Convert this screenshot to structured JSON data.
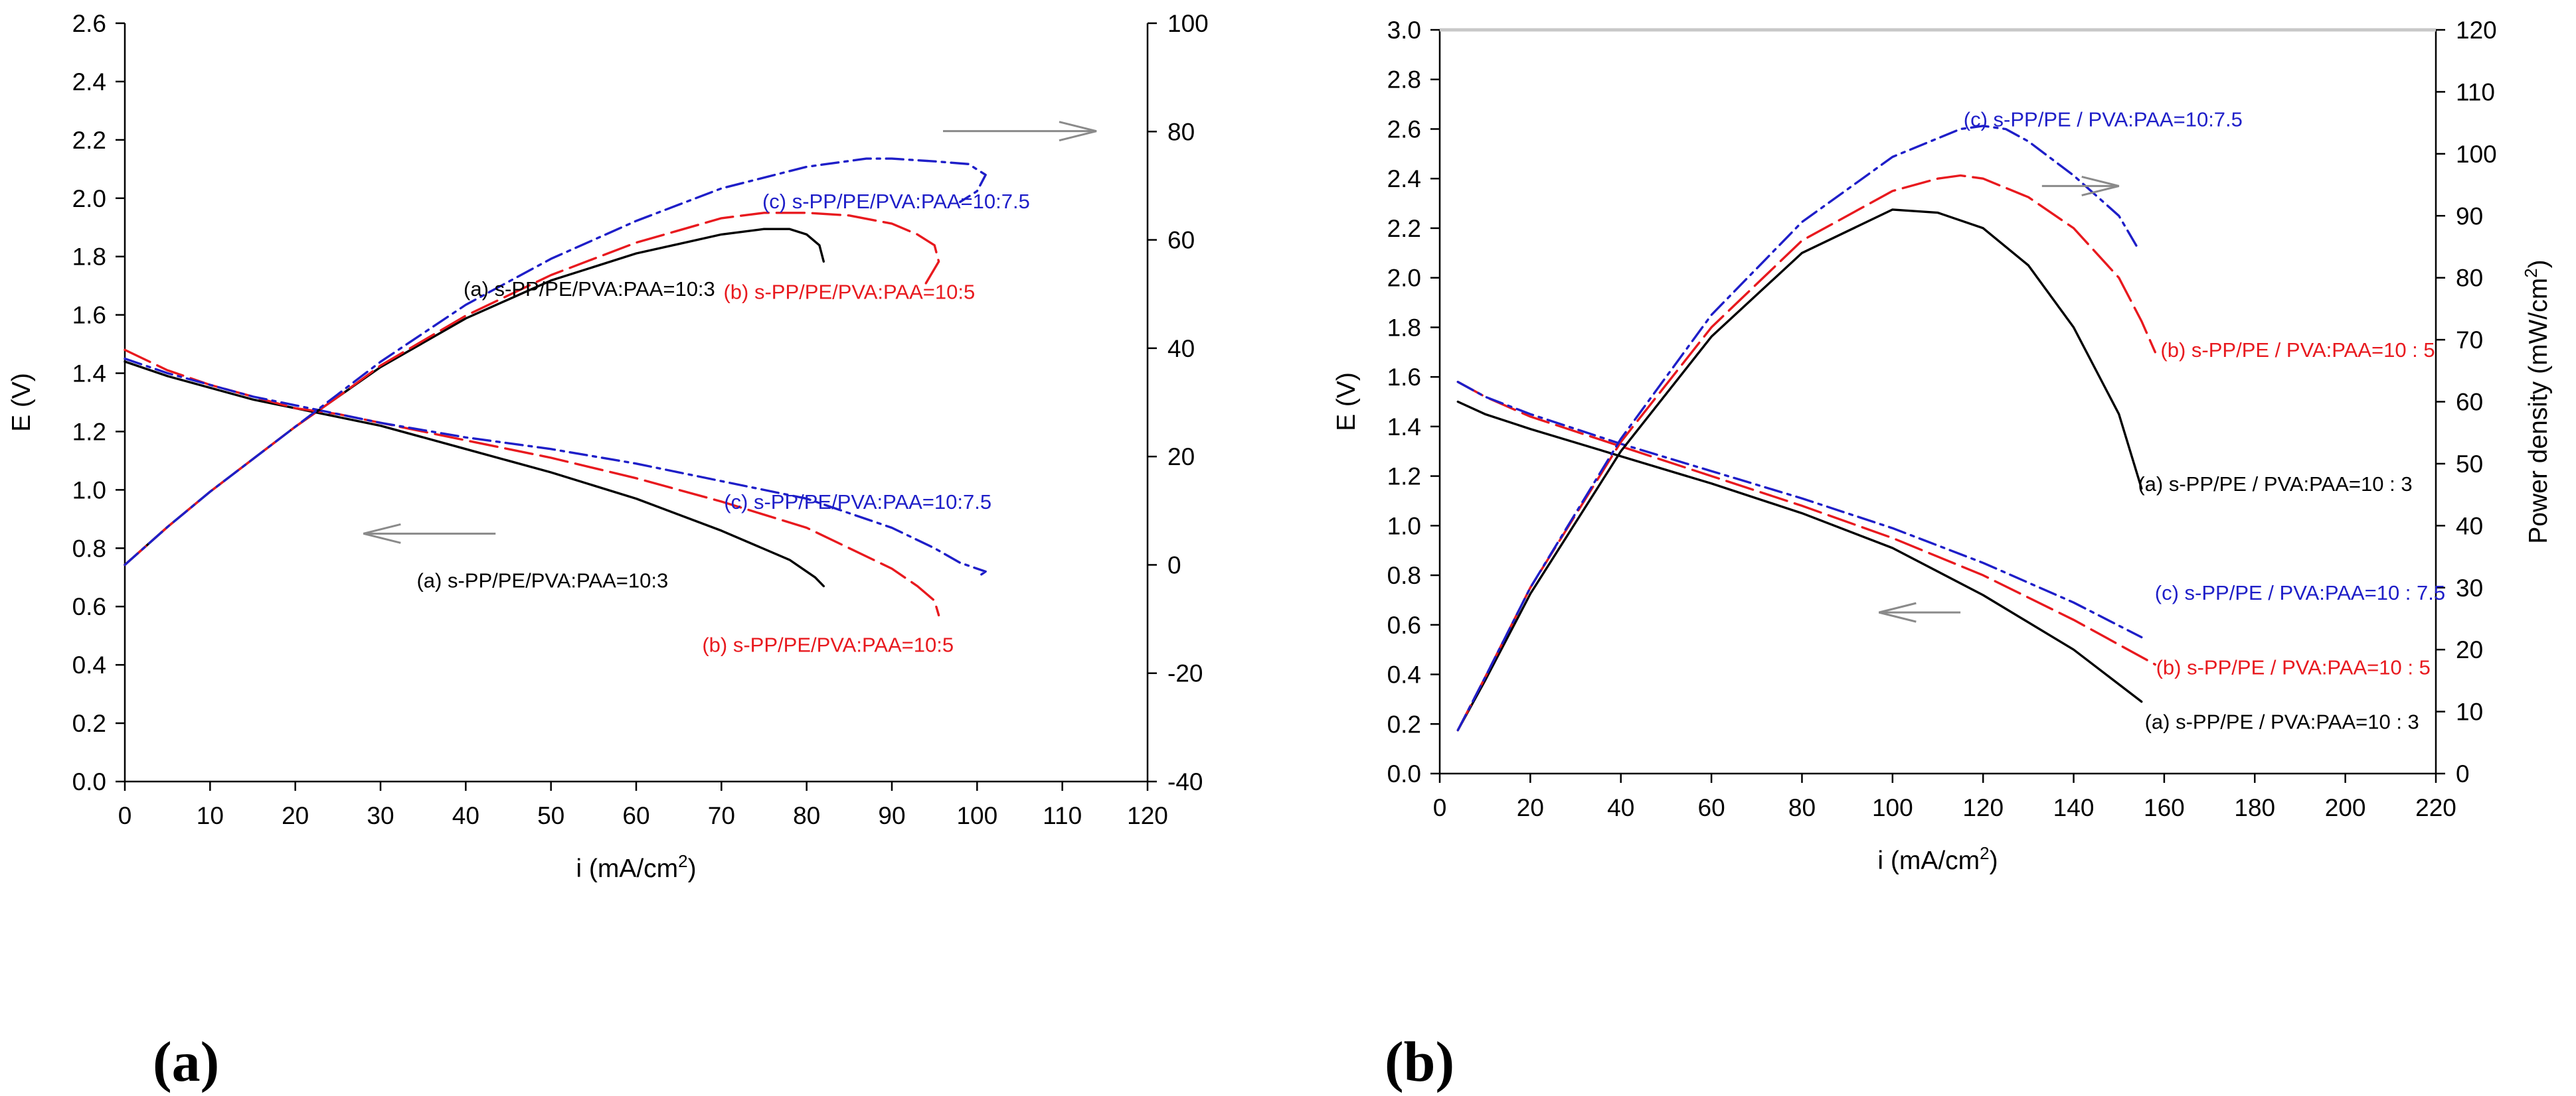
{
  "panels": [
    {
      "label": "(a)",
      "chart_data": {
        "type": "line",
        "xlabel": "i (mA/cm",
        "xlabel_sup": "2",
        "xlabel_end": ")",
        "ylabel": "E (V)",
        "y2label": "",
        "xlim": [
          0,
          120
        ],
        "ylim": [
          0,
          2.6
        ],
        "y2lim": [
          -40,
          100
        ],
        "xticks": [
          0,
          10,
          20,
          30,
          40,
          50,
          60,
          70,
          80,
          90,
          100,
          110,
          120
        ],
        "yticks": [
          0.0,
          0.2,
          0.4,
          0.6,
          0.8,
          1.0,
          1.2,
          1.4,
          1.6,
          1.8,
          2.0,
          2.2,
          2.4,
          2.6
        ],
        "y2ticks": [
          -40,
          -20,
          0,
          20,
          40,
          60,
          80,
          100
        ],
        "series": [
          {
            "name": "(a) s-PP/PE/PVA:PAA=10:3",
            "kind": "polarization",
            "color": "#000000",
            "dash": "solid",
            "x": [
              0,
              5,
              10,
              15,
              20,
              25,
              30,
              40,
              50,
              60,
              70,
              78,
              81,
              82
            ],
            "y": [
              1.44,
              1.39,
              1.35,
              1.31,
              1.28,
              1.25,
              1.22,
              1.14,
              1.06,
              0.97,
              0.86,
              0.76,
              0.7,
              0.67
            ]
          },
          {
            "name": "(b) s-PP/PE/PVA:PAA=10:5",
            "kind": "polarization",
            "color": "#e8191e",
            "dash": "long",
            "x": [
              0,
              5,
              10,
              15,
              20,
              25,
              30,
              40,
              50,
              60,
              70,
              80,
              90,
              93,
              95,
              95.5
            ],
            "y": [
              1.48,
              1.41,
              1.36,
              1.32,
              1.28,
              1.26,
              1.23,
              1.17,
              1.11,
              1.04,
              0.96,
              0.87,
              0.73,
              0.67,
              0.62,
              0.57
            ]
          },
          {
            "name": "(c) s-PP/PE/PVA:PAA=10:7.5",
            "kind": "polarization",
            "color": "#1e1ec8",
            "dash": "dashdot",
            "x": [
              0,
              5,
              10,
              15,
              20,
              25,
              30,
              40,
              50,
              60,
              70,
              80,
              90,
              95,
              98,
              100,
              101,
              100.5
            ],
            "y": [
              1.45,
              1.4,
              1.36,
              1.32,
              1.29,
              1.26,
              1.23,
              1.18,
              1.14,
              1.09,
              1.03,
              0.97,
              0.87,
              0.8,
              0.75,
              0.73,
              0.72,
              0.71
            ]
          },
          {
            "name": "(a) s-PP/PE/PVA:PAA=10:3",
            "kind": "power",
            "color": "#000000",
            "dash": "solid",
            "x": [
              0,
              5,
              10,
              15,
              20,
              25,
              30,
              40,
              50,
              60,
              70,
              75,
              78,
              80,
              81.5,
              82
            ],
            "y": [
              0,
              7,
              13.5,
              19.5,
              25.5,
              31,
              36.5,
              45.5,
              52.5,
              57.5,
              61,
              62,
              62,
              61,
              59,
              56
            ]
          },
          {
            "name": "(b) s-PP/PE/PVA:PAA=10:5",
            "kind": "power",
            "color": "#e8191e",
            "dash": "long",
            "x": [
              0,
              5,
              10,
              15,
              20,
              25,
              30,
              40,
              50,
              60,
              70,
              75,
              80,
              85,
              90,
              93,
              95,
              95.5,
              94
            ],
            "y": [
              0,
              7,
              13.5,
              19.5,
              25.5,
              31,
              36.8,
              46,
              53.5,
              59.5,
              64,
              65,
              65,
              64.5,
              63,
              61,
              59,
              56,
              52
            ]
          },
          {
            "name": "(c) s-PP/PE/PVA:PAA=10:7.5",
            "kind": "power",
            "color": "#1e1ec8",
            "dash": "dashdot",
            "x": [
              0,
              5,
              10,
              15,
              20,
              25,
              30,
              40,
              50,
              60,
              70,
              80,
              87,
              90,
              95,
              99,
              101,
              100,
              98
            ],
            "y": [
              0,
              7,
              13.5,
              19.5,
              25.5,
              31.5,
              37.5,
              48,
              56.5,
              63.5,
              69.5,
              73.5,
              75,
              75,
              74.5,
              74,
              72,
              69,
              67
            ]
          }
        ],
        "annotations": [
          {
            "text": "(c) s-PP/PE/PVA:PAA=10:7.5",
            "color": "#1e1ec8",
            "x": 90.5,
            "y": 1.99
          },
          {
            "text": "(a) s-PP/PE/PVA:PAA=10:3",
            "color": "#000000",
            "x": 54.5,
            "y": 1.69
          },
          {
            "text": "(b) s-PP/PE/PVA:PAA=10:5",
            "color": "#e8191e",
            "x": 85,
            "y": 1.68
          },
          {
            "text": "(c) s-PP/PE/PVA:PAA=10:7.5",
            "color": "#1e1ec8",
            "x": 86,
            "y": 0.96
          },
          {
            "text": "(a) s-PP/PE/PVA:PAA=10:3",
            "color": "#000000",
            "x": 49,
            "y": 0.69
          },
          {
            "text": "(b) s-PP/PE/PVA:PAA=10:5",
            "color": "#e8191e",
            "x": 82.5,
            "y": 0.47
          }
        ],
        "arrows": [
          {
            "direction": "right",
            "x1": 96,
            "x2": 114,
            "y": 2.23
          },
          {
            "direction": "left",
            "x1": 43.5,
            "x2": 28,
            "y": 0.85
          }
        ]
      }
    },
    {
      "label": "(b)",
      "chart_data": {
        "type": "line",
        "xlabel": "i (mA/cm",
        "xlabel_sup": "2",
        "xlabel_end": ")",
        "ylabel": "E (V)",
        "y2label": "Power density (mW/cm",
        "y2label_sup": "2",
        "y2label_end": ")",
        "xlim": [
          0,
          220
        ],
        "ylim": [
          0,
          3.0
        ],
        "y2lim": [
          0,
          120
        ],
        "xticks": [
          0,
          20,
          40,
          60,
          80,
          100,
          120,
          140,
          160,
          180,
          200,
          220
        ],
        "yticks": [
          0.0,
          0.2,
          0.4,
          0.6,
          0.8,
          1.0,
          1.2,
          1.4,
          1.6,
          1.8,
          2.0,
          2.2,
          2.4,
          2.6,
          2.8,
          3.0
        ],
        "y2ticks": [
          0,
          10,
          20,
          30,
          40,
          50,
          60,
          70,
          80,
          90,
          100,
          110,
          120
        ],
        "series": [
          {
            "name": "(a) s-PP/PE / PVA:PAA=10 : 3",
            "kind": "polarization",
            "color": "#000000",
            "dash": "solid",
            "x": [
              4,
              10,
              20,
              40,
              60,
              80,
              100,
              120,
              140,
              155
            ],
            "y": [
              1.5,
              1.45,
              1.39,
              1.28,
              1.17,
              1.05,
              0.91,
              0.72,
              0.5,
              0.29
            ]
          },
          {
            "name": "(b) s-PP/PE / PVA:PAA=10 : 5",
            "kind": "polarization",
            "color": "#e8191e",
            "dash": "long",
            "x": [
              4,
              10,
              20,
              40,
              60,
              80,
              100,
              120,
              140,
              158
            ],
            "y": [
              1.58,
              1.52,
              1.44,
              1.32,
              1.2,
              1.08,
              0.95,
              0.8,
              0.62,
              0.44
            ]
          },
          {
            "name": "(c) s-PP/PE / PVA:PAA=10 : 7.5",
            "kind": "polarization",
            "color": "#1e1ec8",
            "dash": "dashdot",
            "x": [
              4,
              10,
              20,
              40,
              60,
              80,
              100,
              120,
              140,
              155
            ],
            "y": [
              1.58,
              1.52,
              1.45,
              1.33,
              1.22,
              1.11,
              0.99,
              0.85,
              0.69,
              0.55
            ]
          },
          {
            "name": "(a) s-PP/PE / PVA:PAA=10 : 3",
            "kind": "power",
            "color": "#000000",
            "dash": "solid",
            "x": [
              4,
              10,
              20,
              40,
              60,
              80,
              100,
              110,
              120,
              130,
              140,
              150,
              155
            ],
            "y": [
              7,
              15,
              29,
              52,
              70.5,
              84,
              91,
              90.5,
              88,
              82,
              72,
              58,
              46
            ]
          },
          {
            "name": "(b) s-PP/PE / PVA:PAA=10 : 5",
            "kind": "power",
            "color": "#e8191e",
            "dash": "long",
            "x": [
              4,
              10,
              20,
              40,
              60,
              80,
              100,
              110,
              115,
              120,
              130,
              140,
              150,
              155,
              158
            ],
            "y": [
              7,
              15.5,
              30,
              53.5,
              72,
              86,
              94,
              96,
              96.5,
              96,
              93,
              88,
              80,
              73,
              68
            ]
          },
          {
            "name": "(c) s-PP/PE / PVA:PAA=10 : 7.5",
            "kind": "power",
            "color": "#1e1ec8",
            "dash": "dashdot",
            "x": [
              4,
              10,
              20,
              40,
              60,
              80,
              100,
              110,
              115,
              120,
              125,
              130,
              140,
              150,
              154
            ],
            "y": [
              7,
              15.5,
              30,
              54,
              74,
              89,
              99.5,
              102.5,
              104,
              104.5,
              104,
              102,
              96.5,
              90,
              85
            ]
          }
        ],
        "annotations": [
          {
            "text": "(c) s-PP/PE / PVA:PAA=10:7.5",
            "color": "#1e1ec8",
            "x": 146.5,
            "y": 2.64
          },
          {
            "text": "(b) s-PP/PE / PVA:PAA=10 : 5",
            "color": "#e8191e",
            "x": 189.5,
            "y": 1.71
          },
          {
            "text": "(a) s-PP/PE / PVA:PAA=10 : 3",
            "color": "#000000",
            "x": 184.5,
            "y": 1.17
          },
          {
            "text": "(c) s-PP/PE / PVA:PAA=10 : 7.5",
            "color": "#1e1ec8",
            "x": 190,
            "y": 0.73
          },
          {
            "text": "(b) s-PP/PE / PVA:PAA=10 : 5",
            "color": "#e8191e",
            "x": 188.5,
            "y": 0.43
          },
          {
            "text": "(a) s-PP/PE / PVA:PAA=10 : 3",
            "color": "#000000",
            "x": 186,
            "y": 0.21
          }
        ],
        "arrows": [
          {
            "direction": "right",
            "x1": 133,
            "x2": 150,
            "y": 2.37
          },
          {
            "direction": "left",
            "x1": 115,
            "x2": 97,
            "y": 0.65
          }
        ]
      }
    }
  ]
}
